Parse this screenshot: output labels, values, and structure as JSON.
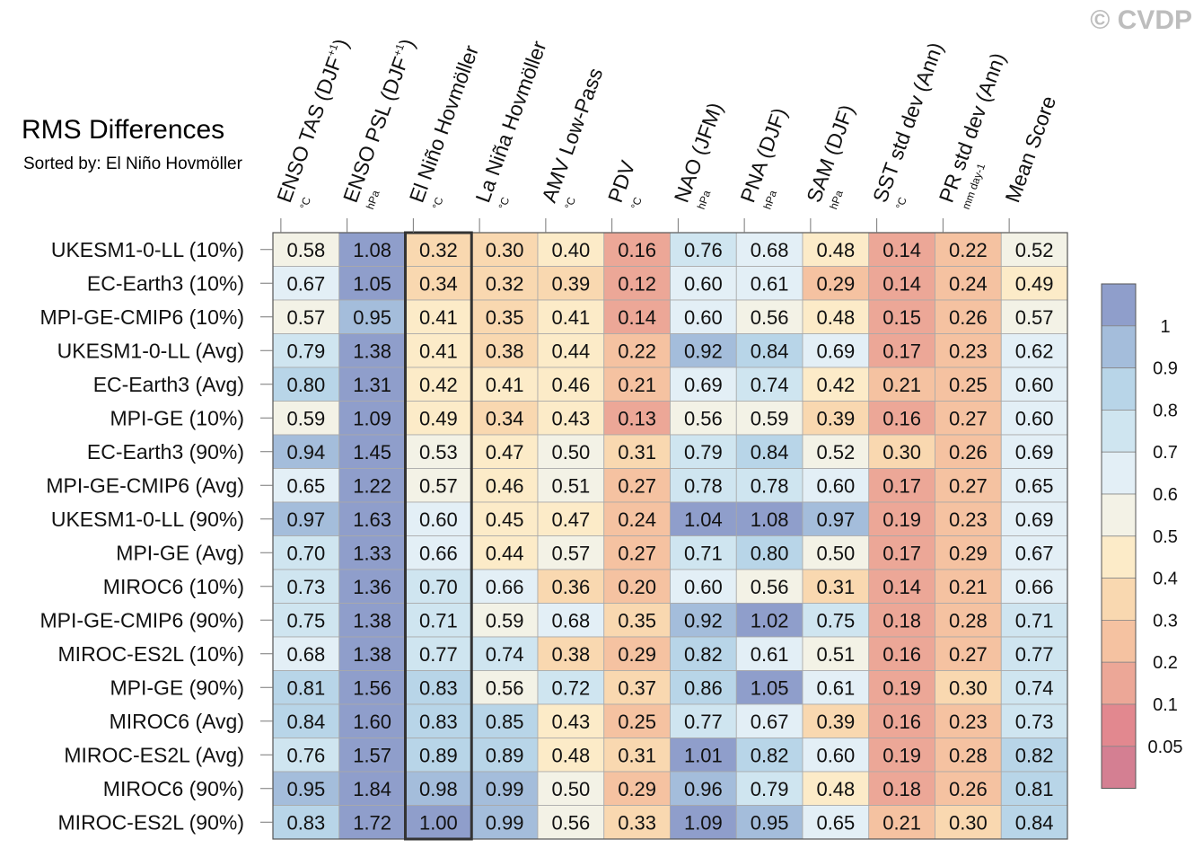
{
  "title": "RMS Differences",
  "subtitle": "Sorted by: El Niño Hovmöller",
  "watermark": "© CVDP",
  "chart_data": {
    "type": "heatmap",
    "highlight_column": 2,
    "columns": [
      {
        "name": "ENSO TAS (DJF",
        "sup": "+1",
        "close": ")",
        "unit": "°C"
      },
      {
        "name": "ENSO PSL (DJF",
        "sup": "+1",
        "close": ")",
        "unit": "hPa"
      },
      {
        "name": "El Niño Hovmöller",
        "sup": "",
        "close": "",
        "unit": "°C"
      },
      {
        "name": "La Niña Hovmöller",
        "sup": "",
        "close": "",
        "unit": "°C"
      },
      {
        "name": "AMV Low-Pass",
        "sup": "",
        "close": "",
        "unit": "°C"
      },
      {
        "name": "PDV",
        "sup": "",
        "close": "",
        "unit": "°C"
      },
      {
        "name": "NAO (JFM)",
        "sup": "",
        "close": "",
        "unit": "hPa"
      },
      {
        "name": "PNA (DJF)",
        "sup": "",
        "close": "",
        "unit": "hPa"
      },
      {
        "name": "SAM (DJF)",
        "sup": "",
        "close": "",
        "unit": "hPa"
      },
      {
        "name": "SST std dev (Ann)",
        "sup": "",
        "close": "",
        "unit": "°C"
      },
      {
        "name": "PR std dev (Ann)",
        "sup": "",
        "close": "",
        "unit": "mm day-1"
      },
      {
        "name": "Mean Score",
        "sup": "",
        "close": "",
        "unit": ""
      }
    ],
    "rows": [
      {
        "label": "UKESM1-0-LL (10%)",
        "values": [
          0.58,
          1.08,
          0.32,
          0.3,
          0.4,
          0.16,
          0.76,
          0.68,
          0.48,
          0.14,
          0.22,
          0.52
        ]
      },
      {
        "label": "EC-Earth3 (10%)",
        "values": [
          0.67,
          1.05,
          0.34,
          0.32,
          0.39,
          0.12,
          0.6,
          0.61,
          0.29,
          0.14,
          0.24,
          0.49
        ]
      },
      {
        "label": "MPI-GE-CMIP6 (10%)",
        "values": [
          0.57,
          0.95,
          0.41,
          0.35,
          0.41,
          0.14,
          0.6,
          0.56,
          0.48,
          0.15,
          0.26,
          0.57
        ]
      },
      {
        "label": "UKESM1-0-LL (Avg)",
        "values": [
          0.79,
          1.38,
          0.41,
          0.38,
          0.44,
          0.22,
          0.92,
          0.84,
          0.69,
          0.17,
          0.23,
          0.62
        ]
      },
      {
        "label": "EC-Earth3 (Avg)",
        "values": [
          0.8,
          1.31,
          0.42,
          0.41,
          0.46,
          0.21,
          0.69,
          0.74,
          0.42,
          0.21,
          0.25,
          0.6
        ]
      },
      {
        "label": "MPI-GE (10%)",
        "values": [
          0.59,
          1.09,
          0.49,
          0.34,
          0.43,
          0.13,
          0.56,
          0.59,
          0.39,
          0.16,
          0.27,
          0.6
        ]
      },
      {
        "label": "EC-Earth3 (90%)",
        "values": [
          0.94,
          1.45,
          0.53,
          0.47,
          0.5,
          0.31,
          0.79,
          0.84,
          0.52,
          0.3,
          0.26,
          0.69
        ]
      },
      {
        "label": "MPI-GE-CMIP6 (Avg)",
        "values": [
          0.65,
          1.22,
          0.57,
          0.46,
          0.51,
          0.27,
          0.78,
          0.78,
          0.6,
          0.17,
          0.27,
          0.65
        ]
      },
      {
        "label": "UKESM1-0-LL (90%)",
        "values": [
          0.97,
          1.63,
          0.6,
          0.45,
          0.47,
          0.24,
          1.04,
          1.08,
          0.97,
          0.19,
          0.23,
          0.69
        ]
      },
      {
        "label": "MPI-GE (Avg)",
        "values": [
          0.7,
          1.33,
          0.66,
          0.44,
          0.57,
          0.27,
          0.71,
          0.8,
          0.5,
          0.17,
          0.29,
          0.67
        ]
      },
      {
        "label": "MIROC6 (10%)",
        "values": [
          0.73,
          1.36,
          0.7,
          0.66,
          0.36,
          0.2,
          0.6,
          0.56,
          0.31,
          0.14,
          0.21,
          0.66
        ]
      },
      {
        "label": "MPI-GE-CMIP6 (90%)",
        "values": [
          0.75,
          1.38,
          0.71,
          0.59,
          0.68,
          0.35,
          0.92,
          1.02,
          0.75,
          0.18,
          0.28,
          0.71
        ]
      },
      {
        "label": "MIROC-ES2L (10%)",
        "values": [
          0.68,
          1.38,
          0.77,
          0.74,
          0.38,
          0.29,
          0.82,
          0.61,
          0.51,
          0.16,
          0.27,
          0.77
        ]
      },
      {
        "label": "MPI-GE (90%)",
        "values": [
          0.81,
          1.56,
          0.83,
          0.56,
          0.72,
          0.37,
          0.86,
          1.05,
          0.61,
          0.19,
          0.3,
          0.74
        ]
      },
      {
        "label": "MIROC6 (Avg)",
        "values": [
          0.84,
          1.6,
          0.83,
          0.85,
          0.43,
          0.25,
          0.77,
          0.67,
          0.39,
          0.16,
          0.23,
          0.73
        ]
      },
      {
        "label": "MIROC-ES2L (Avg)",
        "values": [
          0.76,
          1.57,
          0.89,
          0.89,
          0.48,
          0.31,
          1.01,
          0.82,
          0.6,
          0.19,
          0.28,
          0.82
        ]
      },
      {
        "label": "MIROC6 (90%)",
        "values": [
          0.95,
          1.84,
          0.98,
          0.99,
          0.5,
          0.29,
          0.96,
          0.79,
          0.48,
          0.18,
          0.26,
          0.81
        ]
      },
      {
        "label": "MIROC-ES2L (90%)",
        "values": [
          0.83,
          1.72,
          1.0,
          0.99,
          0.56,
          0.33,
          1.09,
          0.95,
          0.65,
          0.21,
          0.3,
          0.84
        ]
      }
    ],
    "colorbar": {
      "labels": [
        "1",
        "0.9",
        "0.8",
        "0.7",
        "0.6",
        "0.5",
        "0.4",
        "0.3",
        "0.2",
        "0.1",
        "0.05"
      ],
      "bounds": [
        0.05,
        0.1,
        0.2,
        0.3,
        0.4,
        0.5,
        0.6,
        0.7,
        0.8,
        0.9,
        1.0
      ],
      "colors": [
        "#d47f92",
        "#e2888f",
        "#eca797",
        "#f5c2a1",
        "#f9d8b0",
        "#fcebc8",
        "#f3f2e6",
        "#e3eff6",
        "#cfe5f0",
        "#b8d5e8",
        "#a4bddb",
        "#8f9ecb"
      ]
    }
  }
}
